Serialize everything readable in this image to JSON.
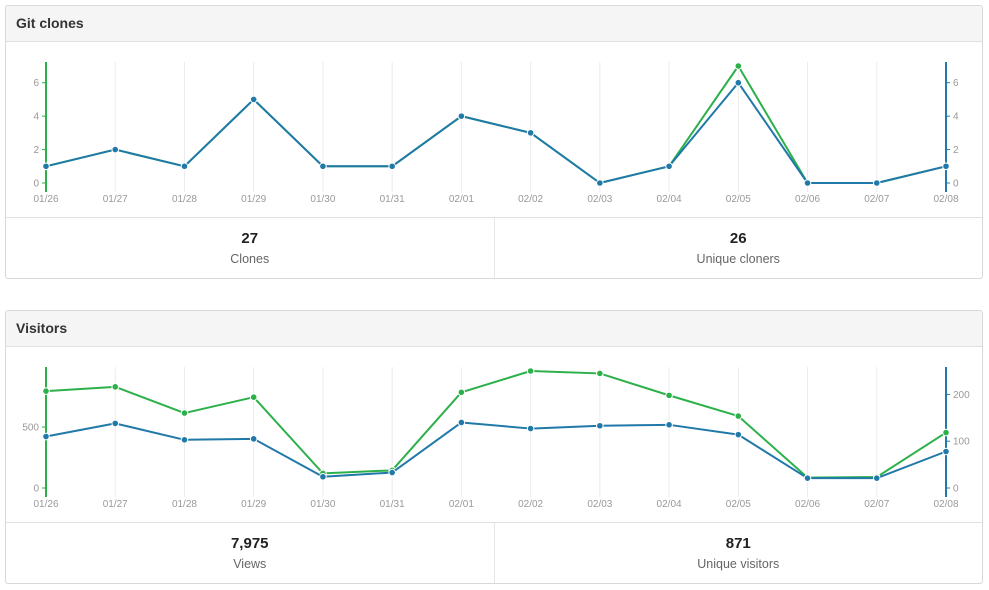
{
  "panels": [
    {
      "title": "Git clones",
      "stats": [
        {
          "value": "27",
          "label": "Clones"
        },
        {
          "value": "26",
          "label": "Unique cloners"
        }
      ]
    },
    {
      "title": "Visitors",
      "stats": [
        {
          "value": "7,975",
          "label": "Views"
        },
        {
          "value": "871",
          "label": "Unique visitors"
        }
      ]
    }
  ],
  "colors": {
    "total": "#2cb04a",
    "unique": "#2079a8",
    "grid": "#ececec",
    "tick": "#999999"
  },
  "chart_data": [
    {
      "type": "line",
      "title": "Git clones",
      "categories": [
        "01/26",
        "01/27",
        "01/28",
        "01/29",
        "01/30",
        "01/31",
        "02/01",
        "02/02",
        "02/03",
        "02/04",
        "02/05",
        "02/06",
        "02/07",
        "02/08"
      ],
      "series": [
        {
          "axis": "left",
          "values": [
            1,
            2,
            1,
            5,
            1,
            1,
            4,
            3,
            0,
            1,
            7,
            0,
            0,
            1
          ]
        },
        {
          "axis": "right",
          "values": [
            1,
            2,
            1,
            5,
            1,
            1,
            4,
            3,
            0,
            1,
            6,
            0,
            0,
            1
          ]
        }
      ],
      "left_axis": {
        "ylim": [
          0,
          7
        ],
        "ticks": [
          0,
          2,
          4,
          6
        ]
      },
      "right_axis": {
        "ylim": [
          0,
          7
        ],
        "ticks": [
          0,
          2,
          4,
          6
        ]
      },
      "grid": "vertical"
    },
    {
      "type": "line",
      "title": "Visitors",
      "categories": [
        "01/26",
        "01/27",
        "01/28",
        "01/29",
        "01/30",
        "01/31",
        "02/01",
        "02/02",
        "02/03",
        "02/04",
        "02/05",
        "02/06",
        "02/07",
        "02/08"
      ],
      "series": [
        {
          "axis": "left",
          "values": [
            795,
            830,
            615,
            745,
            120,
            145,
            785,
            960,
            940,
            760,
            590,
            85,
            90,
            455
          ]
        },
        {
          "axis": "right",
          "values": [
            110,
            138,
            103,
            105,
            24,
            33,
            140,
            127,
            133,
            135,
            114,
            21,
            21,
            78
          ]
        }
      ],
      "left_axis": {
        "ylim": [
          0,
          960
        ],
        "ticks": [
          0,
          500
        ]
      },
      "right_axis": {
        "ylim": [
          0,
          250
        ],
        "ticks": [
          0,
          100,
          200
        ]
      },
      "grid": "vertical"
    }
  ]
}
